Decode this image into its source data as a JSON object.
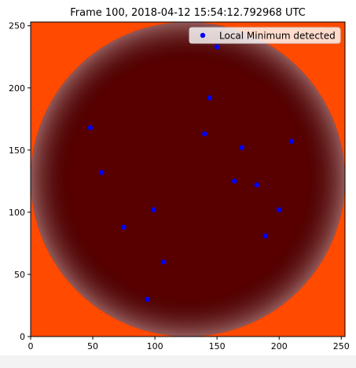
{
  "chart_data": {
    "type": "scatter",
    "title": "Frame 100, 2018-04-12 15:54:12.792968 UTC",
    "xlim": [
      0,
      253
    ],
    "ylim": [
      0,
      253
    ],
    "x_ticks": [
      0,
      50,
      100,
      150,
      200,
      250
    ],
    "y_ticks": [
      0,
      50,
      100,
      150,
      200,
      250
    ],
    "background_image": "solar disk heatmap (hot colormap), circular disk centered at (126, 126), radius ~126",
    "legend": {
      "placement": "top-right"
    },
    "series": [
      {
        "name": "Local Minimum detected",
        "color": "#0000ff",
        "marker": "circle",
        "x": [
          150,
          144,
          48,
          140,
          170,
          210,
          57,
          164,
          182,
          99,
          200,
          75,
          189,
          107,
          94
        ],
        "y": [
          233,
          192,
          168,
          163,
          152,
          157,
          132,
          125,
          122,
          102,
          102,
          88,
          81,
          60,
          30
        ]
      }
    ]
  }
}
